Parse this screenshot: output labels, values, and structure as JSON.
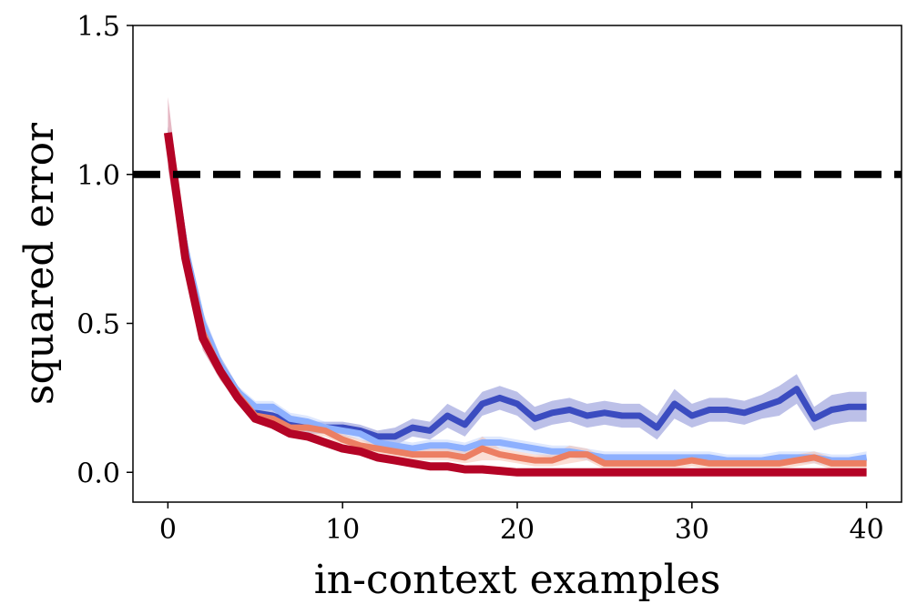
{
  "chart_data": {
    "type": "line",
    "title": "",
    "xlabel": "in-context examples",
    "ylabel": "squared error",
    "xlim": [
      -2,
      42
    ],
    "ylim": [
      -0.1,
      1.5
    ],
    "xticks": [
      0,
      10,
      20,
      30,
      40
    ],
    "yticks": [
      0.0,
      0.5,
      1.0,
      1.5
    ],
    "xtick_labels": [
      "0",
      "10",
      "20",
      "30",
      "40"
    ],
    "ytick_labels": [
      "0.0",
      "0.5",
      "1.0",
      "1.5"
    ],
    "grid": false,
    "legend": "none",
    "reference_line": {
      "y": 1.0,
      "style": "dashed",
      "color": "#000000"
    },
    "series": [
      {
        "color": "#3b4cc0",
        "band_color": "#6a73cc",
        "values": [
          1.13,
          0.75,
          0.48,
          0.36,
          0.27,
          0.2,
          0.19,
          0.17,
          0.15,
          0.15,
          0.15,
          0.14,
          0.12,
          0.12,
          0.15,
          0.14,
          0.19,
          0.16,
          0.23,
          0.25,
          0.23,
          0.18,
          0.2,
          0.21,
          0.19,
          0.2,
          0.19,
          0.19,
          0.15,
          0.23,
          0.19,
          0.21,
          0.21,
          0.2,
          0.22,
          0.24,
          0.28,
          0.18,
          0.21,
          0.22,
          0.22
        ],
        "band": [
          0.03,
          0.06,
          0.05,
          0.03,
          0.02,
          0.02,
          0.02,
          0.02,
          0.02,
          0.02,
          0.02,
          0.02,
          0.02,
          0.03,
          0.03,
          0.03,
          0.04,
          0.04,
          0.04,
          0.04,
          0.04,
          0.04,
          0.04,
          0.04,
          0.04,
          0.04,
          0.04,
          0.04,
          0.04,
          0.05,
          0.04,
          0.04,
          0.04,
          0.04,
          0.04,
          0.05,
          0.05,
          0.04,
          0.05,
          0.05,
          0.05
        ]
      },
      {
        "color": "#8db0fe",
        "band_color": "#b9cdfb",
        "values": [
          1.13,
          0.75,
          0.5,
          0.36,
          0.27,
          0.22,
          0.22,
          0.18,
          0.17,
          0.15,
          0.14,
          0.13,
          0.1,
          0.09,
          0.08,
          0.09,
          0.09,
          0.08,
          0.1,
          0.1,
          0.09,
          0.08,
          0.07,
          0.07,
          0.06,
          0.05,
          0.05,
          0.05,
          0.05,
          0.05,
          0.05,
          0.05,
          0.04,
          0.04,
          0.04,
          0.05,
          0.05,
          0.05,
          0.04,
          0.04,
          0.05
        ],
        "band": [
          0.03,
          0.05,
          0.04,
          0.03,
          0.02,
          0.02,
          0.02,
          0.02,
          0.02,
          0.02,
          0.02,
          0.02,
          0.02,
          0.02,
          0.02,
          0.02,
          0.02,
          0.02,
          0.02,
          0.02,
          0.02,
          0.02,
          0.02,
          0.02,
          0.02,
          0.02,
          0.02,
          0.02,
          0.02,
          0.02,
          0.02,
          0.02,
          0.02,
          0.02,
          0.02,
          0.02,
          0.02,
          0.02,
          0.02,
          0.02,
          0.02
        ]
      },
      {
        "color": "#ec7f63",
        "band_color": "#f6b8a2",
        "values": [
          1.13,
          0.73,
          0.47,
          0.34,
          0.26,
          0.19,
          0.18,
          0.15,
          0.15,
          0.14,
          0.11,
          0.09,
          0.08,
          0.07,
          0.06,
          0.06,
          0.06,
          0.05,
          0.08,
          0.06,
          0.05,
          0.04,
          0.04,
          0.06,
          0.06,
          0.03,
          0.03,
          0.03,
          0.03,
          0.03,
          0.04,
          0.03,
          0.03,
          0.03,
          0.03,
          0.03,
          0.04,
          0.05,
          0.03,
          0.03,
          0.03
        ],
        "band": [
          0.03,
          0.05,
          0.04,
          0.03,
          0.02,
          0.02,
          0.02,
          0.02,
          0.03,
          0.02,
          0.02,
          0.02,
          0.02,
          0.02,
          0.02,
          0.02,
          0.02,
          0.02,
          0.04,
          0.02,
          0.02,
          0.02,
          0.02,
          0.03,
          0.02,
          0.02,
          0.02,
          0.02,
          0.02,
          0.02,
          0.02,
          0.02,
          0.02,
          0.02,
          0.02,
          0.02,
          0.02,
          0.02,
          0.02,
          0.02,
          0.02
        ]
      },
      {
        "color": "#b40426",
        "band_color": "#c6607a",
        "values": [
          1.14,
          0.72,
          0.45,
          0.34,
          0.25,
          0.18,
          0.16,
          0.13,
          0.12,
          0.1,
          0.08,
          0.07,
          0.05,
          0.04,
          0.03,
          0.02,
          0.02,
          0.01,
          0.01,
          0.005,
          0.0,
          0.0,
          0.0,
          0.0,
          0.0,
          0.0,
          0.0,
          0.0,
          0.0,
          0.0,
          0.0,
          0.0,
          0.0,
          0.0,
          0.0,
          0.0,
          0.0,
          0.0,
          0.0,
          0.0,
          0.0
        ],
        "band": [
          0.12,
          0.06,
          0.04,
          0.03,
          0.02,
          0.01,
          0.01,
          0.01,
          0.01,
          0.01,
          0.01,
          0.01,
          0.01,
          0.01,
          0.01,
          0.01,
          0.01,
          0.005,
          0.005,
          0.005,
          0.005,
          0.005,
          0.005,
          0.005,
          0.005,
          0.005,
          0.005,
          0.005,
          0.005,
          0.005,
          0.005,
          0.005,
          0.005,
          0.005,
          0.005,
          0.005,
          0.005,
          0.005,
          0.005,
          0.005,
          0.005
        ]
      }
    ]
  }
}
